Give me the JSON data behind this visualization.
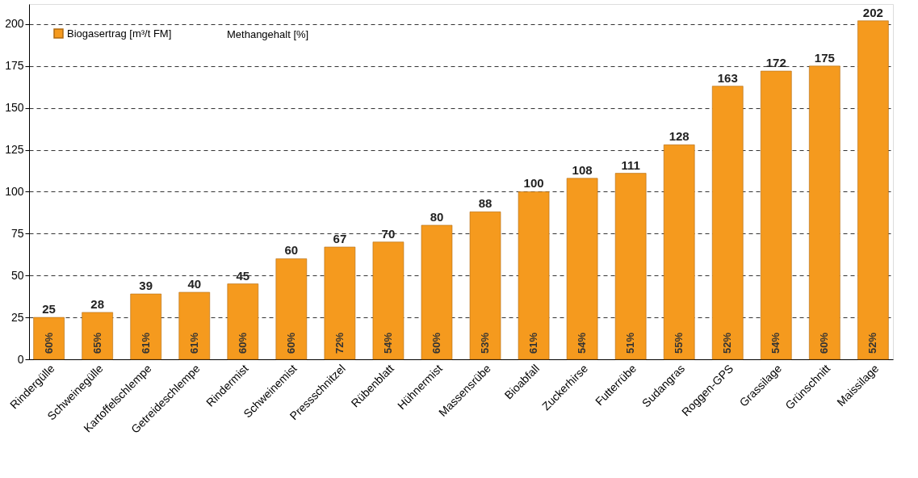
{
  "chart_data": {
    "type": "bar",
    "categories": [
      "Rindergülle",
      "Schweinegülle",
      "Kartoffelschlempe",
      "Getreideschlempe",
      "Rindermist",
      "Schweinemist",
      "Pressschnitzel",
      "Rübenblatt",
      "Hühnermist",
      "Massensrübe",
      "Bioabfall",
      "Zuckerhirse",
      "Futterrübe",
      "Sudangras",
      "Roggen-GPS",
      "Grassilage",
      "Grünschnitt",
      "Maissilage"
    ],
    "series": [
      {
        "name": "Biogasertrag [m³/t FM]",
        "color": "#f59a1e",
        "values": [
          25,
          28,
          39,
          40,
          45,
          60,
          67,
          70,
          80,
          88,
          100,
          108,
          111,
          128,
          163,
          172,
          175,
          202
        ]
      }
    ],
    "ylim": [
      0,
      212
    ],
    "yticks": [
      0,
      25,
      50,
      75,
      100,
      125,
      150,
      175,
      200
    ],
    "grid": "y",
    "legend": "top left",
    "data_labels": true,
    "annotations": [
      "Methangehalt [%]",
      "60%",
      "65%",
      "61%",
      "61%",
      "60%",
      "60%",
      "72%",
      "54%",
      "60%",
      "53%",
      "61%",
      "54%",
      "51%",
      "55%",
      "52%",
      "54%",
      "60%",
      "52%"
    ]
  }
}
